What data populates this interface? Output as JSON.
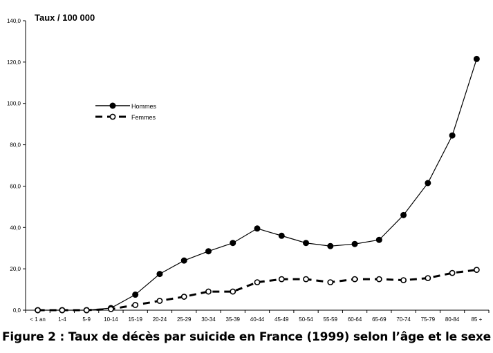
{
  "chart_data": {
    "type": "line",
    "title": "",
    "ylabel": "Taux / 100 000",
    "xlabel": "",
    "ylim": [
      0,
      140
    ],
    "yticks": [
      "0,0",
      "20,0",
      "40,0",
      "60,0",
      "80,0",
      "100,0",
      "120,0",
      "140,0"
    ],
    "categories": [
      "< 1 an",
      "1-4",
      "5-9",
      "10-14",
      "15-19",
      "20-24",
      "25-29",
      "30-34",
      "35-39",
      "40-44",
      "45-49",
      "50-54",
      "55-59",
      "60-64",
      "65-69",
      "70-74",
      "75-79",
      "80-84",
      "85 +"
    ],
    "legend_position": "upper-left",
    "grid": false,
    "series": [
      {
        "name": "Hommes",
        "color": "#000000",
        "style": "solid",
        "marker": "filled-circle",
        "values": [
          0,
          0,
          0,
          1,
          7.5,
          17.5,
          24,
          28.5,
          32.5,
          39.5,
          36,
          32.5,
          31,
          32,
          34,
          46,
          61.5,
          84.5,
          121.5
        ]
      },
      {
        "name": "Femmes",
        "color": "#000000",
        "style": "dashed",
        "marker": "open-circle",
        "values": [
          0,
          0,
          0,
          0.5,
          2.5,
          4.5,
          6.5,
          9,
          9,
          13.5,
          15,
          15,
          13.5,
          15,
          15,
          14.5,
          15.5,
          18,
          19.5
        ]
      }
    ]
  },
  "caption": "Figure 2 : Taux de décès par suicide en France (1999) selon l’âge et le sexe"
}
